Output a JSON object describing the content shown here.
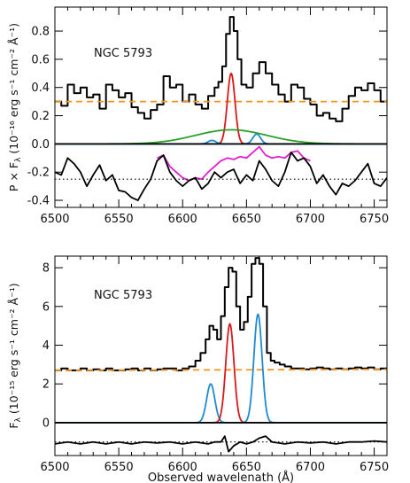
{
  "chart_data": [
    {
      "type": "line",
      "object_label": "NGC 5793",
      "ylabel": "P × F_λ (10⁻¹⁶ erg s⁻¹ cm⁻² Å⁻¹)",
      "ylabel_main": "P × F",
      "ylabel_sub": "λ",
      "ylabel_units": " (10⁻¹⁶ erg s⁻¹ cm⁻² Å⁻¹)",
      "xlim": [
        6500,
        6760
      ],
      "ylim": [
        -0.45,
        0.97
      ],
      "x_ticks": [
        6500,
        6550,
        6600,
        6650,
        6700,
        6750
      ],
      "y_ticks": [
        -0.4,
        -0.2,
        0.0,
        0.2,
        0.4,
        0.6,
        0.8
      ],
      "y_tick_labels": [
        "-0.4",
        "-0.2",
        "0.0",
        "0.2",
        "0.4",
        "0.6",
        "0.8"
      ],
      "grid": false,
      "colors": {
        "data": "#000000",
        "continuum": "#f7941d",
        "narrow": "#d7191c",
        "broad": "#2ca02c",
        "nii": "#1f8ad0",
        "residual_alt": "#e020d0"
      },
      "series": [
        {
          "type": "step",
          "color": "#000000",
          "x": [
            6500,
            6505,
            6510,
            6515,
            6520,
            6525,
            6530,
            6535,
            6540,
            6545,
            6550,
            6555,
            6560,
            6565,
            6570,
            6575,
            6580,
            6585,
            6590,
            6595,
            6600,
            6605,
            6610,
            6615,
            6620,
            6625,
            6628,
            6631,
            6634,
            6637,
            6640,
            6643,
            6646,
            6650,
            6655,
            6660,
            6665,
            6670,
            6675,
            6680,
            6685,
            6690,
            6695,
            6700,
            6705,
            6710,
            6715,
            6720,
            6725,
            6730,
            6735,
            6740,
            6745,
            6750,
            6755,
            6760
          ],
          "y": [
            0.3,
            0.27,
            0.42,
            0.36,
            0.4,
            0.33,
            0.35,
            0.25,
            0.42,
            0.38,
            0.33,
            0.36,
            0.26,
            0.22,
            0.18,
            0.24,
            0.28,
            0.48,
            0.4,
            0.42,
            0.3,
            0.35,
            0.28,
            0.25,
            0.34,
            0.4,
            0.44,
            0.55,
            0.78,
            0.9,
            0.8,
            0.6,
            0.42,
            0.4,
            0.5,
            0.58,
            0.5,
            0.42,
            0.35,
            0.3,
            0.42,
            0.4,
            0.32,
            0.28,
            0.2,
            0.22,
            0.18,
            0.16,
            0.25,
            0.34,
            0.4,
            0.38,
            0.43,
            0.38,
            0.3,
            0.3
          ]
        },
        {
          "type": "line",
          "style": "dashed",
          "color": "#f7941d",
          "x": [
            6500,
            6760
          ],
          "y": [
            0.3,
            0.3
          ]
        },
        {
          "type": "line",
          "color": "#d7191c",
          "gauss": {
            "center": 6638,
            "amp": 0.5,
            "sigma": 3
          }
        },
        {
          "type": "line",
          "color": "#2ca02c",
          "gauss": {
            "center": 6638,
            "amp": 0.1,
            "sigma": 28
          }
        },
        {
          "type": "line",
          "color": "#1f8ad0",
          "gauss": {
            "center": 6623,
            "amp": 0.025,
            "sigma": 3
          }
        },
        {
          "type": "line",
          "color": "#1f8ad0",
          "gauss": {
            "center": 6658,
            "amp": 0.07,
            "sigma": 3
          }
        },
        {
          "type": "line",
          "color": "#000000",
          "x": [
            6500,
            6760
          ],
          "y": [
            0.0,
            0.0
          ]
        },
        {
          "type": "line",
          "color": "#e020d0",
          "x": [
            6580,
            6585,
            6590,
            6595,
            6600,
            6605,
            6610,
            6615,
            6620,
            6625,
            6630,
            6635,
            6640,
            6645,
            6650,
            6655,
            6660,
            6665,
            6670,
            6675,
            6680,
            6685,
            6690,
            6695,
            6700
          ],
          "y": [
            -0.1,
            -0.08,
            -0.16,
            -0.2,
            -0.24,
            -0.26,
            -0.24,
            -0.25,
            -0.2,
            -0.16,
            -0.12,
            -0.1,
            -0.11,
            -0.09,
            -0.1,
            -0.06,
            -0.02,
            -0.08,
            -0.1,
            -0.09,
            -0.1,
            -0.06,
            -0.05,
            -0.1,
            -0.12
          ]
        },
        {
          "type": "line",
          "color": "#000000",
          "x": [
            6500,
            6505,
            6510,
            6515,
            6520,
            6525,
            6530,
            6535,
            6540,
            6545,
            6550,
            6555,
            6560,
            6565,
            6570,
            6575,
            6580,
            6585,
            6590,
            6595,
            6600,
            6605,
            6610,
            6615,
            6620,
            6625,
            6630,
            6635,
            6640,
            6645,
            6650,
            6655,
            6660,
            6665,
            6670,
            6675,
            6680,
            6685,
            6690,
            6695,
            6700,
            6705,
            6710,
            6715,
            6720,
            6725,
            6730,
            6735,
            6740,
            6745,
            6750,
            6755,
            6760
          ],
          "y": [
            -0.2,
            -0.22,
            -0.1,
            -0.14,
            -0.2,
            -0.3,
            -0.22,
            -0.15,
            -0.26,
            -0.22,
            -0.33,
            -0.34,
            -0.38,
            -0.4,
            -0.32,
            -0.25,
            -0.12,
            -0.08,
            -0.2,
            -0.26,
            -0.3,
            -0.26,
            -0.24,
            -0.32,
            -0.28,
            -0.2,
            -0.24,
            -0.2,
            -0.18,
            -0.28,
            -0.22,
            -0.26,
            -0.12,
            -0.18,
            -0.26,
            -0.3,
            -0.2,
            -0.06,
            -0.12,
            -0.1,
            -0.16,
            -0.28,
            -0.22,
            -0.3,
            -0.36,
            -0.28,
            -0.3,
            -0.26,
            -0.2,
            -0.14,
            -0.28,
            -0.3,
            -0.24
          ]
        },
        {
          "type": "line",
          "style": "dotted",
          "color": "#000000",
          "x": [
            6500,
            6760
          ],
          "y": [
            -0.25,
            -0.25
          ]
        }
      ]
    },
    {
      "type": "line",
      "object_label": "NGC 5793",
      "ylabel": "F_λ (10⁻¹⁵ erg s⁻¹ cm⁻² Å⁻¹)",
      "ylabel_main": "F",
      "ylabel_sub": "λ",
      "ylabel_units": " (10⁻¹⁵ erg s⁻¹ cm⁻² Å⁻¹)",
      "xlabel": "Observed wavelenath (Å)",
      "xlim": [
        6500,
        6760
      ],
      "ylim": [
        -1.7,
        8.6
      ],
      "x_ticks": [
        6500,
        6550,
        6600,
        6650,
        6700,
        6750
      ],
      "y_ticks": [
        0,
        2,
        4,
        6,
        8
      ],
      "y_tick_labels": [
        "0",
        "2",
        "4",
        "6",
        "8"
      ],
      "grid": false,
      "series": [
        {
          "type": "step",
          "color": "#000000",
          "x": [
            6500,
            6505,
            6510,
            6515,
            6520,
            6525,
            6530,
            6535,
            6540,
            6545,
            6550,
            6555,
            6560,
            6565,
            6570,
            6575,
            6580,
            6585,
            6590,
            6595,
            6600,
            6605,
            6610,
            6614,
            6618,
            6621,
            6624,
            6627,
            6630,
            6633,
            6636,
            6639,
            6642,
            6645,
            6648,
            6651,
            6654,
            6657,
            6660,
            6663,
            6666,
            6669,
            6672,
            6676,
            6680,
            6685,
            6690,
            6695,
            6700,
            6705,
            6710,
            6715,
            6720,
            6725,
            6730,
            6735,
            6740,
            6745,
            6750,
            6755,
            6760
          ],
          "y": [
            2.7,
            2.8,
            2.7,
            2.7,
            2.8,
            2.7,
            2.75,
            2.7,
            2.8,
            2.7,
            2.7,
            2.75,
            2.8,
            2.7,
            2.8,
            2.7,
            2.75,
            2.8,
            2.8,
            2.7,
            2.8,
            2.9,
            3.2,
            3.6,
            4.3,
            5.0,
            4.8,
            4.3,
            5.5,
            7.0,
            8.0,
            7.8,
            6.0,
            4.8,
            5.2,
            6.5,
            8.2,
            8.5,
            8.2,
            6.0,
            3.6,
            3.2,
            3.1,
            3.0,
            2.9,
            2.8,
            2.8,
            2.75,
            2.8,
            2.85,
            2.8,
            2.75,
            2.8,
            2.75,
            2.8,
            2.85,
            2.8,
            2.85,
            2.75,
            2.8,
            2.8
          ]
        },
        {
          "type": "line",
          "style": "dashed",
          "color": "#f7941d",
          "x": [
            6500,
            6760
          ],
          "y": [
            2.7,
            2.75
          ]
        },
        {
          "type": "line",
          "color": "#1f8ad0",
          "gauss": {
            "center": 6622,
            "amp": 2.0,
            "sigma": 3.2
          }
        },
        {
          "type": "line",
          "color": "#d7191c",
          "gauss": {
            "center": 6637,
            "amp": 5.1,
            "sigma": 3.2
          }
        },
        {
          "type": "line",
          "color": "#1f8ad0",
          "gauss": {
            "center": 6659,
            "amp": 5.6,
            "sigma": 3.2
          }
        },
        {
          "type": "line",
          "color": "#000000",
          "x": [
            6500,
            6760
          ],
          "y": [
            0.0,
            0.0
          ]
        },
        {
          "type": "line",
          "color": "#000000",
          "x": [
            6500,
            6510,
            6520,
            6530,
            6540,
            6550,
            6560,
            6570,
            6580,
            6590,
            6600,
            6610,
            6620,
            6625,
            6630,
            6633,
            6636,
            6640,
            6645,
            6650,
            6655,
            6660,
            6665,
            6670,
            6680,
            6690,
            6700,
            6710,
            6720,
            6730,
            6740,
            6750,
            6760
          ],
          "y": [
            -1.1,
            -1.0,
            -1.1,
            -1.0,
            -1.1,
            -1.0,
            -1.1,
            -1.0,
            -1.05,
            -1.0,
            -1.1,
            -1.0,
            -1.1,
            -1.0,
            -1.0,
            -0.7,
            -1.5,
            -1.2,
            -1.0,
            -1.1,
            -1.0,
            -0.8,
            -0.7,
            -1.0,
            -1.1,
            -1.0,
            -1.05,
            -1.0,
            -1.1,
            -1.0,
            -1.0,
            -0.95,
            -1.0
          ]
        },
        {
          "type": "line",
          "style": "dotted",
          "color": "#000000",
          "x": [
            6500,
            6760
          ],
          "y": [
            -1.0,
            -1.0
          ]
        }
      ]
    }
  ]
}
